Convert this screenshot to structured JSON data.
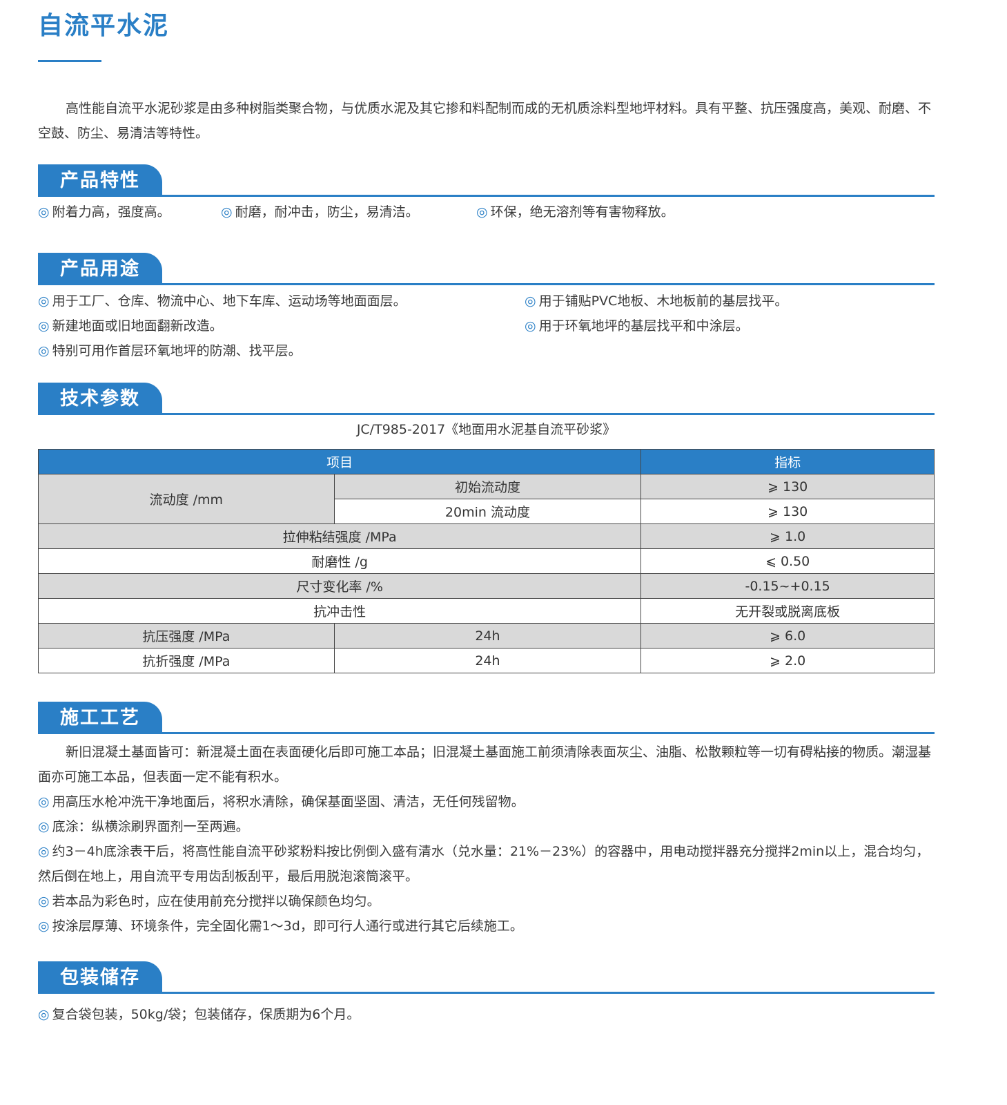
{
  "title": "自流平水泥",
  "intro": "高性能自流平水泥砂浆是由多种树脂类聚合物，与优质水泥及其它掺和料配制而成的无机质涂料型地坪材料。具有平整、抗压强度高，美观、耐磨、不空鼓、防尘、易清洁等特性。",
  "bullet_icon": "◎",
  "accent_color": "#2a7fc6",
  "features": {
    "heading": "产品特性",
    "items": [
      "附着力高，强度高。",
      "耐磨，耐冲击，防尘，易清洁。",
      "环保，绝无溶剂等有害物释放。"
    ]
  },
  "usage": {
    "heading": "产品用途",
    "items": [
      "用于工厂、仓库、物流中心、地下车库、运动场等地面面层。",
      "用于铺贴PVC地板、木地板前的基层找平。",
      "新建地面或旧地面翻新改造。",
      "用于环氧地坪的基层找平和中涂层。",
      "特别可用作首层环氧地坪的防潮、找平层。"
    ]
  },
  "tech": {
    "heading": "技术参数",
    "standard": "JC/T985-2017《地面用水泥基自流平砂浆》",
    "headers": [
      "项目",
      "指标"
    ],
    "rows": {
      "flow_label": "流动度 /mm",
      "flow_initial": "初始流动度",
      "flow_initial_val": "⩾ 130",
      "flow_20": "20min 流动度",
      "flow_20_val": "⩾ 130",
      "tensile": "拉伸粘结强度 /MPa",
      "tensile_val": "⩾ 1.0",
      "wear": "耐磨性 /g",
      "wear_val": "⩽ 0.50",
      "size": "尺寸变化率 /%",
      "size_val": "-0.15~+0.15",
      "impact": "抗冲击性",
      "impact_val": "无开裂或脱离底板",
      "comp": "抗压强度 /MPa",
      "comp_time": "24h",
      "comp_val": "⩾ 6.0",
      "flex": "抗折强度 /MPa",
      "flex_time": "24h",
      "flex_val": "⩾ 2.0"
    }
  },
  "construction": {
    "heading": "施工工艺",
    "intro": "新旧混凝土基面皆可：新混凝土面在表面硬化后即可施工本品；旧混凝土基面施工前须清除表面灰尘、油脂、松散颗粒等一切有碍粘接的物质。潮湿基面亦可施工本品，但表面一定不能有积水。",
    "items": [
      "用高压水枪冲洗干净地面后，将积水清除，确保基面坚固、清洁，无任何残留物。",
      "底涂：纵横涂刷界面剂一至两遍。",
      "约3－4h底涂表干后，将高性能自流平砂浆粉料按比例倒入盛有清水（兑水量：21%－23%）的容器中，用电动搅拌器充分搅拌2min以上，混合均匀，然后倒在地上，用自流平专用齿刮板刮平，最后用脱泡滚筒滚平。",
      "若本品为彩色时，应在使用前充分搅拌以确保颜色均匀。",
      "按涂层厚薄、环境条件，完全固化需1～3d，即可行人通行或进行其它后续施工。"
    ]
  },
  "packaging": {
    "heading": "包装储存",
    "items": [
      "复合袋包装，50kg/袋；包装储存，保质期为6个月。"
    ]
  }
}
